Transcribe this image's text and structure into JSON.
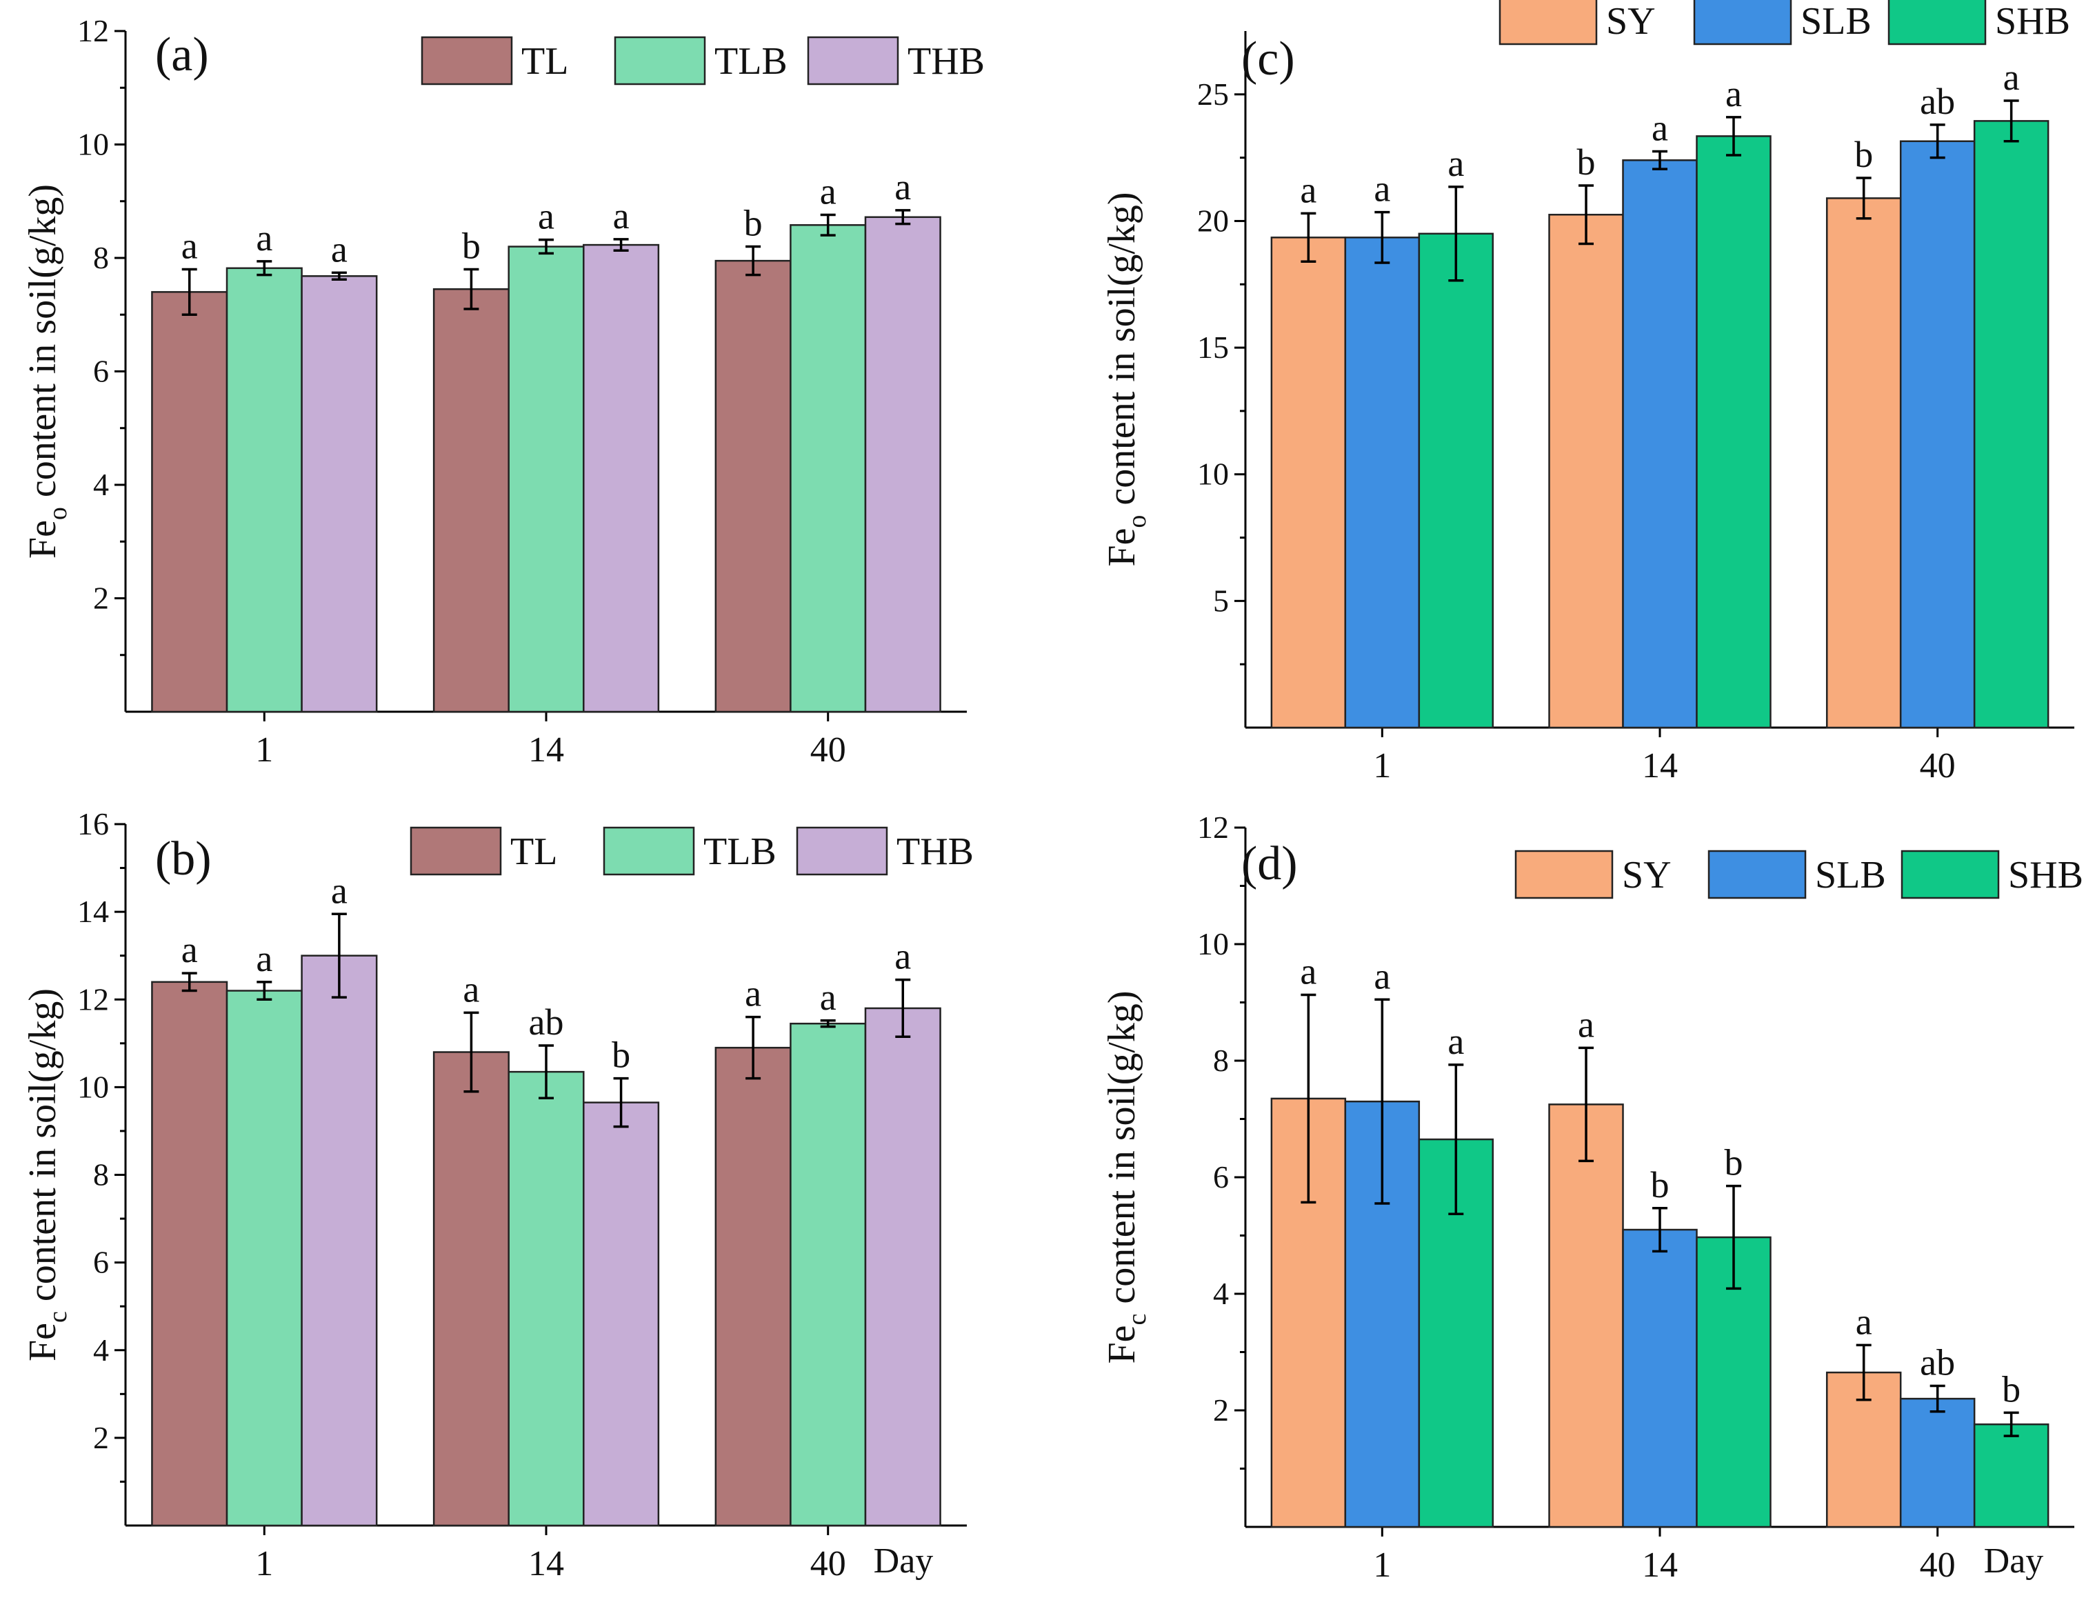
{
  "colors": {
    "TL": "#b07878",
    "TLB": "#7ddcb0",
    "THB": "#c6aed6",
    "SY": "#f8ab7c",
    "SLB": "#3e8fe2",
    "SHB": "#10c887"
  },
  "chart_data": [
    {
      "type": "bar",
      "panel": "(a)",
      "ylabel_main": "Fe",
      "ylabel_sub": "o",
      "ylabel_rest": " content in soil(g/kg)",
      "xlabel": "",
      "ylim": [
        0,
        12
      ],
      "yticks": [
        2,
        4,
        6,
        8,
        10,
        12
      ],
      "ytick_labels": [
        "2",
        "4",
        "6",
        "8",
        "10",
        "12"
      ],
      "categories": [
        "1",
        "14",
        "40"
      ],
      "legend_position": "top-right",
      "series": [
        {
          "name": "TL",
          "color_key": "TL",
          "values": [
            7.4,
            7.45,
            7.95
          ],
          "errors": [
            0.4,
            0.35,
            0.25
          ],
          "sig": [
            "a",
            "b",
            "b"
          ]
        },
        {
          "name": "TLB",
          "color_key": "TLB",
          "values": [
            7.82,
            8.2,
            8.58
          ],
          "errors": [
            0.12,
            0.12,
            0.18
          ],
          "sig": [
            "a",
            "a",
            "a"
          ]
        },
        {
          "name": "THB",
          "color_key": "THB",
          "values": [
            7.68,
            8.23,
            8.72
          ],
          "errors": [
            0.06,
            0.1,
            0.12
          ],
          "sig": [
            "a",
            "a",
            "a"
          ]
        }
      ]
    },
    {
      "type": "bar",
      "panel": "(b)",
      "ylabel_main": "Fe",
      "ylabel_sub": "c",
      "ylabel_rest": " content in soil(g/kg)",
      "xlabel": "Day",
      "ylim": [
        0,
        16
      ],
      "yticks": [
        2,
        4,
        6,
        8,
        10,
        12,
        14,
        16
      ],
      "ytick_labels": [
        "2",
        "4",
        "6",
        "8",
        "10",
        "12",
        "14",
        "16"
      ],
      "categories": [
        "1",
        "14",
        "40"
      ],
      "legend_position": "top-right",
      "series": [
        {
          "name": "TL",
          "color_key": "TL",
          "values": [
            12.4,
            10.8,
            10.9
          ],
          "errors": [
            0.2,
            0.9,
            0.7
          ],
          "sig": [
            "a",
            "a",
            "a"
          ]
        },
        {
          "name": "TLB",
          "color_key": "TLB",
          "values": [
            12.2,
            10.35,
            11.45
          ],
          "errors": [
            0.2,
            0.6,
            0.07
          ],
          "sig": [
            "a",
            "ab",
            "a"
          ]
        },
        {
          "name": "THB",
          "color_key": "THB",
          "values": [
            13.0,
            9.65,
            11.8
          ],
          "errors": [
            0.95,
            0.55,
            0.65
          ],
          "sig": [
            "a",
            "b",
            "a"
          ]
        }
      ]
    },
    {
      "type": "bar",
      "panel": "(c)",
      "ylabel_main": "Fe",
      "ylabel_sub": "o",
      "ylabel_rest": " content in soil(g/kg)",
      "xlabel": "",
      "ylim": [
        0,
        27.5
      ],
      "yticks": [
        5,
        10,
        15,
        20,
        25
      ],
      "ytick_labels": [
        "5",
        "10",
        "15",
        "20",
        "25"
      ],
      "categories": [
        "1",
        "14",
        "40"
      ],
      "legend_position": "top-right",
      "series": [
        {
          "name": "SY",
          "color_key": "SY",
          "values": [
            19.35,
            20.25,
            20.9
          ],
          "errors": [
            0.95,
            1.15,
            0.8
          ],
          "sig": [
            "a",
            "b",
            "b"
          ]
        },
        {
          "name": "SLB",
          "color_key": "SLB",
          "values": [
            19.35,
            22.4,
            23.15
          ],
          "errors": [
            1.0,
            0.35,
            0.65
          ],
          "sig": [
            "a",
            "a",
            "ab"
          ]
        },
        {
          "name": "SHB",
          "color_key": "SHB",
          "values": [
            19.5,
            23.35,
            23.95
          ],
          "errors": [
            1.85,
            0.75,
            0.8
          ],
          "sig": [
            "a",
            "a",
            "a"
          ]
        }
      ]
    },
    {
      "type": "bar",
      "panel": "(d)",
      "ylabel_main": "Fe",
      "ylabel_sub": "c",
      "ylabel_rest": " content in soil(g/kg)",
      "xlabel": "Day",
      "ylim": [
        0,
        12
      ],
      "yticks": [
        2,
        4,
        6,
        8,
        10,
        12
      ],
      "ytick_labels": [
        "2",
        "4",
        "6",
        "8",
        "10",
        "12"
      ],
      "categories": [
        "1",
        "14",
        "40"
      ],
      "legend_position": "top-right",
      "series": [
        {
          "name": "SY",
          "color_key": "SY",
          "values": [
            7.35,
            7.25,
            2.65
          ],
          "errors": [
            1.78,
            0.97,
            0.47
          ],
          "sig": [
            "a",
            "a",
            "a"
          ]
        },
        {
          "name": "SLB",
          "color_key": "SLB",
          "values": [
            7.3,
            5.1,
            2.2
          ],
          "errors": [
            1.75,
            0.37,
            0.22
          ],
          "sig": [
            "a",
            "b",
            "ab"
          ]
        },
        {
          "name": "SHB",
          "color_key": "SHB",
          "values": [
            6.65,
            4.97,
            1.76
          ],
          "errors": [
            1.28,
            0.88,
            0.2
          ],
          "sig": [
            "a",
            "b",
            "b"
          ]
        }
      ]
    }
  ]
}
